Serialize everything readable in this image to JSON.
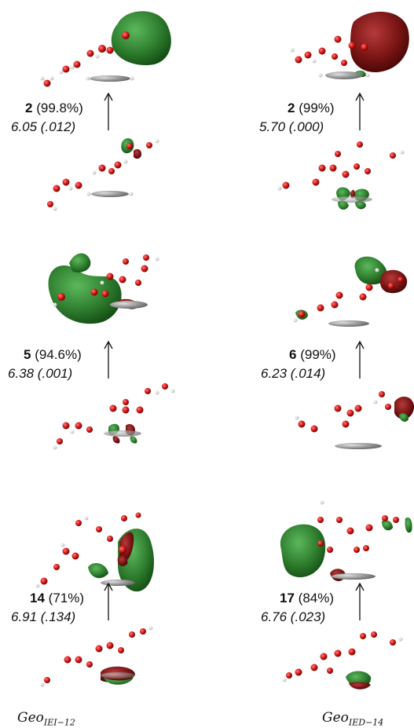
{
  "columns": [
    {
      "caption_main": "Geo",
      "caption_sub": "IEI−12",
      "transitions": [
        {
          "state": "2",
          "weight": "(99.8%)",
          "energy": "6.05 (.012)"
        },
        {
          "state": "5",
          "weight": "(94.6%)",
          "energy": "6.38 (.001)"
        },
        {
          "state": "14",
          "weight": "(71%)",
          "energy": "6.91 (.134)"
        }
      ]
    },
    {
      "caption_main": "Geo",
      "caption_sub": "IED−14",
      "transitions": [
        {
          "state": "2",
          "weight": "(99%)",
          "energy": "5.70 (.000)"
        },
        {
          "state": "6",
          "weight": "(99%)",
          "energy": "6.23 (.014)"
        },
        {
          "state": "17",
          "weight": "(84%)",
          "energy": "6.76 (.023)"
        }
      ]
    }
  ],
  "colors": {
    "oxygen": "#d81c1c",
    "hydrogen": "#e6e6e6",
    "carbon": "#9a9a9a",
    "orbital_positive": "#2e7d2e",
    "orbital_negative": "#7a1414"
  }
}
